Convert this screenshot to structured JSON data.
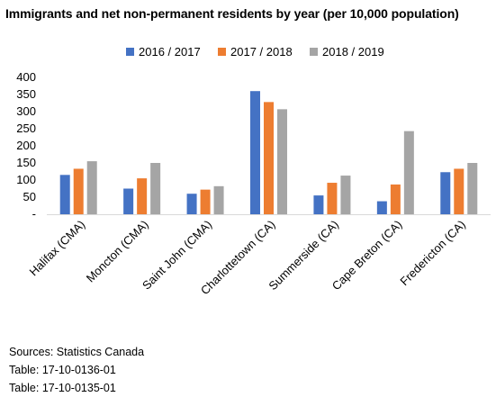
{
  "chart_data": {
    "type": "bar",
    "title": "Immigrants and net non-permanent residents by year (per 10,000 population)",
    "categories": [
      "Halifax (CMA)",
      "Moncton (CMA)",
      "Saint John (CMA)",
      "Charlottetown (CA)",
      "Summerside (CA)",
      "Cape Breton (CA)",
      "Fredericton (CA)"
    ],
    "series": [
      {
        "name": "2016 / 2017",
        "color": "#4472C4",
        "values": [
          115,
          75,
          60,
          360,
          55,
          38,
          123
        ]
      },
      {
        "name": "2017 / 2018",
        "color": "#ED7D31",
        "values": [
          133,
          105,
          72,
          328,
          92,
          87,
          133
        ]
      },
      {
        "name": "2018 / 2019",
        "color": "#A5A5A5",
        "values": [
          155,
          150,
          82,
          307,
          113,
          243,
          150
        ]
      }
    ],
    "ylim": [
      0,
      400
    ],
    "yticks": [
      0,
      50,
      100,
      150,
      200,
      250,
      300,
      350,
      400
    ],
    "ytick_labels": [
      "-",
      "50",
      "100",
      "150",
      "200",
      "250",
      "300",
      "350",
      "400"
    ],
    "xlabel": "",
    "ylabel": "",
    "grid": false,
    "legend_position": "top"
  },
  "sources": [
    "Sources: Statistics Canada",
    "Table: 17-10-0136-01",
    "Table: 17-10-0135-01"
  ]
}
